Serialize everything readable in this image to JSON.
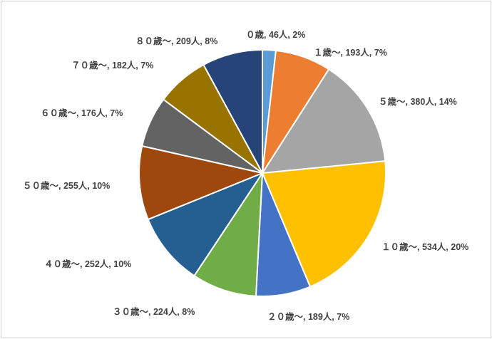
{
  "chart_data": {
    "type": "pie",
    "title": "",
    "slices": [
      {
        "label": "０歳",
        "count": "46人",
        "percent": "2%",
        "value": 46,
        "color": "#5B9BD5"
      },
      {
        "label": "１歳～",
        "count": "193人",
        "percent": "7%",
        "value": 193,
        "color": "#ED7D31"
      },
      {
        "label": "５歳～",
        "count": "380人",
        "percent": "14%",
        "value": 380,
        "color": "#A5A5A5"
      },
      {
        "label": "１０歳～",
        "count": "534人",
        "percent": "20%",
        "value": 534,
        "color": "#FFC000"
      },
      {
        "label": "２０歳～",
        "count": "189人",
        "percent": "7%",
        "value": 189,
        "color": "#4472C4"
      },
      {
        "label": "３０歳～",
        "count": "224人",
        "percent": "8%",
        "value": 224,
        "color": "#70AD47"
      },
      {
        "label": "４０歳～",
        "count": "252人",
        "percent": "10%",
        "value": 252,
        "color": "#255E91"
      },
      {
        "label": "５０歳～",
        "count": "255人",
        "percent": "10%",
        "value": 255,
        "color": "#9E480E"
      },
      {
        "label": "６０歳～",
        "count": "176人",
        "percent": "7%",
        "value": 176,
        "color": "#636363"
      },
      {
        "label": "７０歳～",
        "count": "182人",
        "percent": "7%",
        "value": 182,
        "color": "#997300"
      },
      {
        "label": "８０歳～",
        "count": "209人",
        "percent": "8%",
        "value": 209,
        "color": "#264478"
      }
    ],
    "legend": "none",
    "start_angle": "12 o'clock",
    "direction": "clockwise"
  }
}
